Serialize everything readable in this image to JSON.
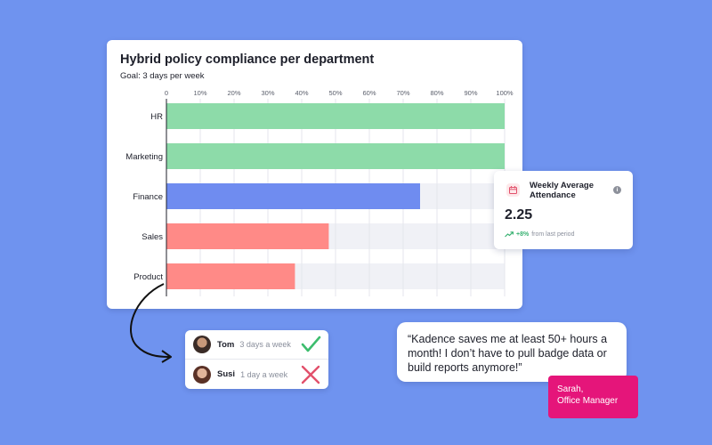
{
  "chart_data": {
    "type": "bar",
    "orientation": "horizontal",
    "title": "Hybrid policy compliance per department",
    "subtitle": "Goal: 3 days per week",
    "categories": [
      "HR",
      "Marketing",
      "Finance",
      "Sales",
      "Product"
    ],
    "values": [
      100,
      100,
      75,
      48,
      38
    ],
    "ticks": [
      "0",
      "10%",
      "20%",
      "30%",
      "40%",
      "50%",
      "60%",
      "70%",
      "80%",
      "90%",
      "100%"
    ],
    "xlim": [
      0,
      100
    ],
    "grid": true,
    "colors": [
      "#8ddba9",
      "#8ddba9",
      "#6f8cf0",
      "#ff8a87",
      "#ff8a87"
    ],
    "track_color": "#f0f1f6"
  },
  "people": [
    {
      "name": "Tom",
      "frequency": "3 days a week",
      "status": "compliant",
      "status_icon": "check-icon",
      "status_color": "#3dbd6e"
    },
    {
      "name": "Susi",
      "frequency": "1 day a week",
      "status": "non-compliant",
      "status_icon": "cross-icon",
      "status_color": "#e2506b"
    }
  ],
  "stat_card": {
    "icon": "calendar-icon",
    "title": "Weekly Average Attendance",
    "value": "2.25",
    "change_icon": "trend-up-icon",
    "change": "+8%",
    "change_label": "from last period",
    "info_icon": "info-icon"
  },
  "testimonial": {
    "quote": "“Kadence saves me at least 50+ hours a month! I don’t have to pull badge data or build reports anymore!”",
    "author_line1": "Sarah,",
    "author_line2": "Office Manager"
  },
  "colors": {
    "background": "#6f93ef",
    "brand_pink": "#e5157a",
    "positive": "#3bb273"
  }
}
